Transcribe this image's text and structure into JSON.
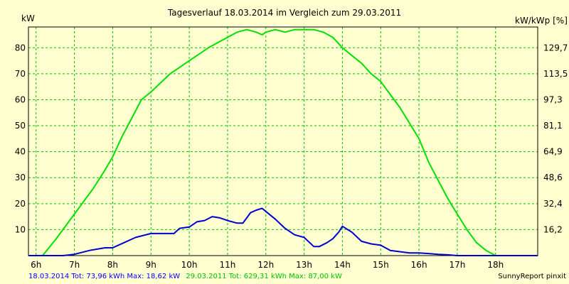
{
  "chart_data": {
    "type": "line",
    "title": "Tagesverlauf 18.03.2014 im Vergleich zum 29.03.2011",
    "ylabel_left": "kW",
    "ylabel_right": "kW/kWp [%]",
    "xlim": [
      5.8,
      19.1
    ],
    "ylim": [
      0,
      88
    ],
    "x_ticks": [
      6,
      7,
      8,
      9,
      10,
      11,
      12,
      13,
      14,
      15,
      16,
      17,
      18
    ],
    "x_tick_labels": [
      "6h",
      "7h",
      "8h",
      "9h",
      "10h",
      "11h",
      "12h",
      "13h",
      "14h",
      "15h",
      "16h",
      "17h",
      "18h"
    ],
    "y_ticks_left": [
      10,
      20,
      30,
      40,
      50,
      60,
      70,
      80
    ],
    "y_ticks_right": [
      16.2,
      32.4,
      48.6,
      64.9,
      81.1,
      97.3,
      113.5,
      129.7
    ],
    "y_tick_labels_right": [
      "16,2",
      "32,4",
      "48,6",
      "64,9",
      "81,1",
      "97,3",
      "113,5",
      "129,7"
    ],
    "grid": true,
    "series": [
      {
        "color": "#00e000",
        "x": [
          5.8,
          6.17,
          6.5,
          7.0,
          7.5,
          7.8,
          8.0,
          8.25,
          8.5,
          8.75,
          9.0,
          9.5,
          10.0,
          10.5,
          11.0,
          11.25,
          11.5,
          11.75,
          11.9,
          12.0,
          12.25,
          12.5,
          12.75,
          13.0,
          13.25,
          13.5,
          13.75,
          14.0,
          14.25,
          14.5,
          14.75,
          15.0,
          15.25,
          15.5,
          15.75,
          16.0,
          16.25,
          16.5,
          16.75,
          17.0,
          17.25,
          17.5,
          17.75,
          18.0,
          18.25,
          18.5,
          19.1
        ],
        "values": [
          0,
          0,
          6,
          16,
          26,
          33,
          38,
          46,
          53,
          60,
          63,
          70,
          75,
          80,
          84,
          86,
          87,
          86,
          85,
          86,
          87,
          86,
          87,
          87,
          87,
          86,
          84,
          80,
          77,
          74,
          70,
          67,
          62,
          57,
          51,
          45,
          36,
          29,
          22,
          16,
          10,
          5,
          2,
          0,
          0,
          0,
          0
        ]
      },
      {
        "color": "#0000d0",
        "x": [
          5.8,
          6.7,
          7.0,
          7.4,
          7.8,
          8.0,
          8.3,
          8.6,
          9.0,
          9.3,
          9.6,
          9.75,
          10.0,
          10.2,
          10.4,
          10.6,
          10.8,
          11.0,
          11.25,
          11.4,
          11.6,
          11.75,
          11.9,
          12.0,
          12.25,
          12.5,
          12.75,
          13.0,
          13.25,
          13.4,
          13.6,
          13.75,
          13.9,
          14.0,
          14.25,
          14.5,
          14.75,
          15.0,
          15.25,
          15.5,
          15.75,
          16.0,
          16.25,
          16.5,
          16.75,
          17.0,
          17.5,
          18.0,
          18.5,
          19.1
        ],
        "values": [
          0,
          0,
          0.5,
          2,
          3,
          3,
          5,
          7,
          8.5,
          8.5,
          8.5,
          10.5,
          11,
          13,
          13.5,
          15,
          14.5,
          13.5,
          12.5,
          12.5,
          16.5,
          17.5,
          18.2,
          17,
          14,
          10.5,
          8,
          7,
          3.5,
          3.5,
          5,
          6.5,
          9,
          11.3,
          9,
          5.5,
          4.5,
          4,
          2,
          1.5,
          1,
          1,
          0.8,
          0.5,
          0.3,
          0,
          0,
          0,
          0,
          0
        ]
      }
    ]
  },
  "footer": {
    "series1_text": "18.03.2014 Tot: 73,96 kWh Max: 18,62 kW",
    "series1_color": "#0000ff",
    "series2_text": "29.03.2011 Tot: 629,31 kWh Max: 87,00 kW",
    "series2_color": "#00c000",
    "credit": "SunnyReport pinxit"
  }
}
